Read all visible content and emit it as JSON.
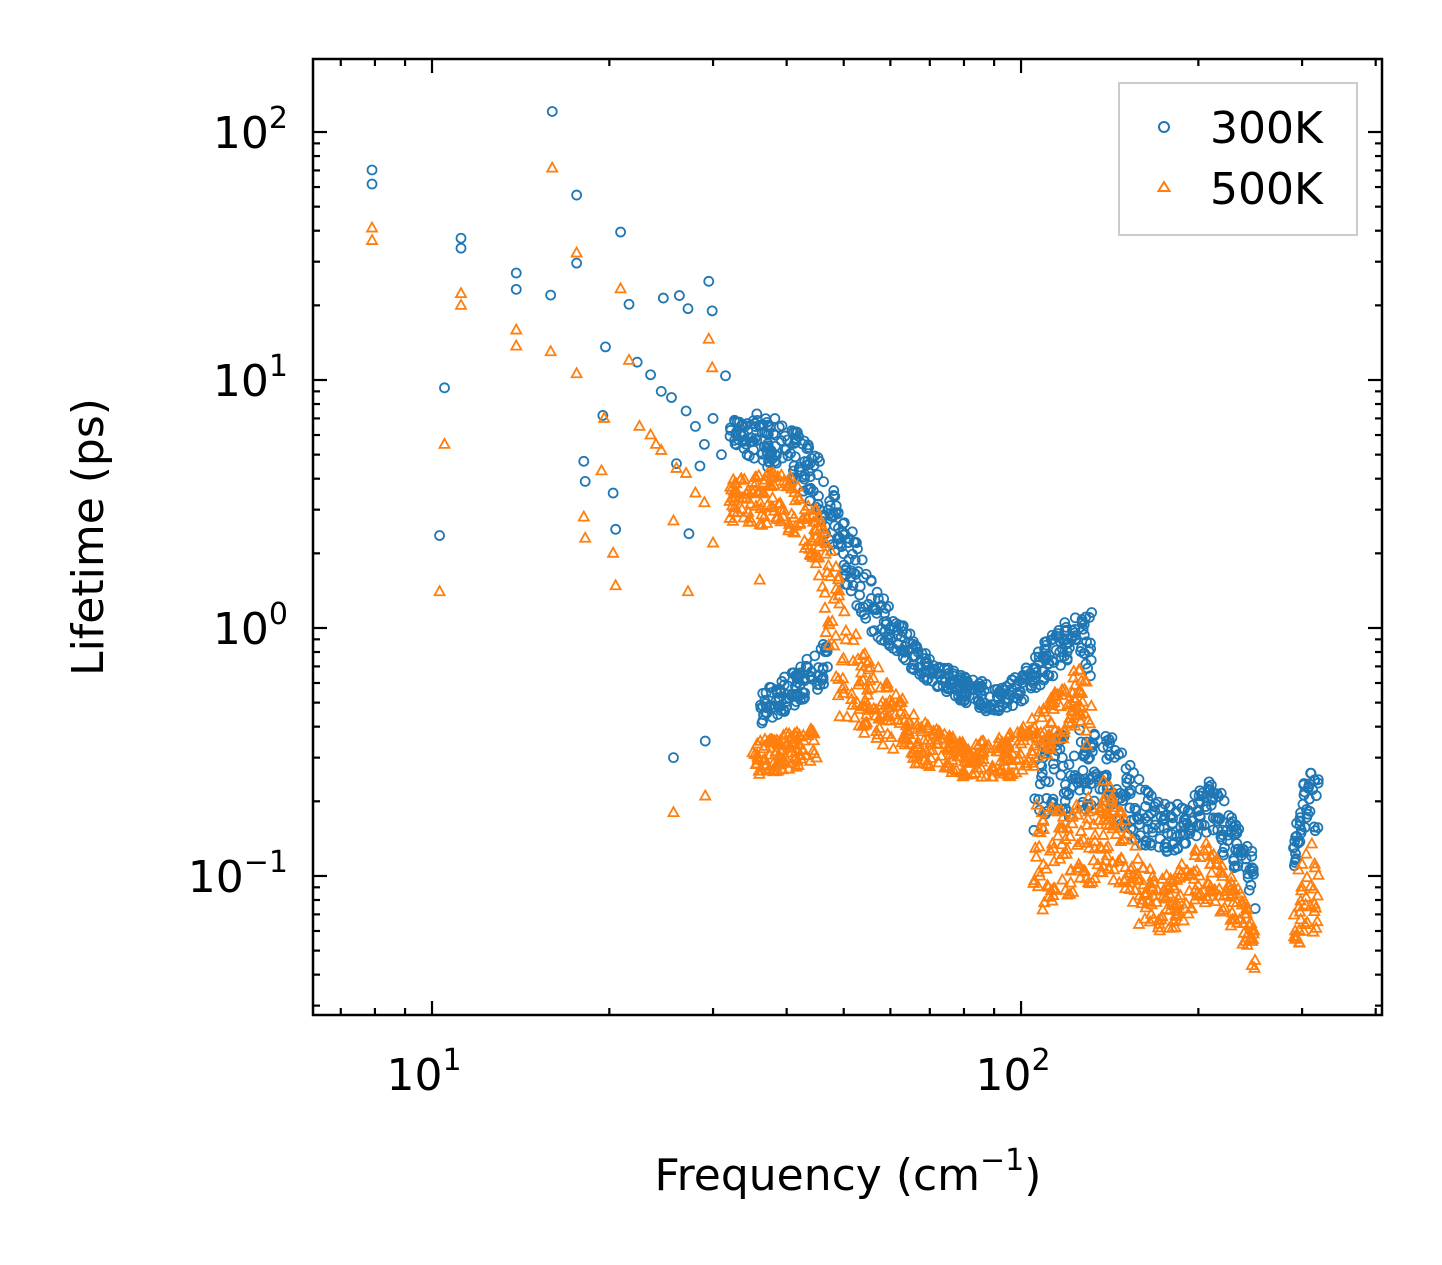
{
  "chart_data": {
    "type": "scatter",
    "title": "",
    "xlabel": "Frequency (cm",
    "xlabel_sup": "−1",
    "xlabel_end": ")",
    "ylabel": "Lifetime (ps)",
    "xscale": "log",
    "yscale": "log",
    "xlim": [
      6.28,
      410
    ],
    "ylim": [
      0.0275,
      197
    ],
    "x_ticks": [
      {
        "base": "10",
        "exp": "1",
        "value": 10
      },
      {
        "base": "10",
        "exp": "2",
        "value": 100
      }
    ],
    "y_ticks": [
      {
        "base": "10",
        "exp": "2",
        "value": 100
      },
      {
        "base": "10",
        "exp": "1",
        "value": 10
      },
      {
        "base": "10",
        "exp": "0",
        "value": 1
      },
      {
        "base": "10",
        "exp": "−1",
        "value": 0.1
      }
    ],
    "legend": {
      "placement": "top-right",
      "entries": [
        "300K",
        "500K"
      ]
    },
    "grid": false,
    "series": [
      {
        "name": "300K",
        "color": "#1f77b4",
        "marker": "circle",
        "points": [
          [
            7.91,
            70.3
          ],
          [
            7.91,
            61.7
          ],
          [
            10.3,
            2.36
          ],
          [
            10.5,
            9.3
          ],
          [
            11.2,
            37.3
          ],
          [
            11.2,
            34
          ],
          [
            13.9,
            23.2
          ],
          [
            13.9,
            27
          ],
          [
            15.9,
            22
          ],
          [
            16.0,
            121
          ],
          [
            17.6,
            55.7
          ],
          [
            17.6,
            29.6
          ],
          [
            18.1,
            4.7
          ],
          [
            18.2,
            3.9
          ],
          [
            19.7,
            13.6
          ],
          [
            19.5,
            7.2
          ],
          [
            20.3,
            3.5
          ],
          [
            20.5,
            2.5
          ],
          [
            20.9,
            39.5
          ],
          [
            21.6,
            20.2
          ],
          [
            22.3,
            11.8
          ],
          [
            24.7,
            21.4
          ],
          [
            25.7,
            0.3
          ],
          [
            26.3,
            21.9
          ],
          [
            27.2,
            19.4
          ],
          [
            29.1,
            0.35
          ],
          [
            29.5,
            25
          ],
          [
            29.9,
            19
          ],
          [
            27.3,
            2.4
          ],
          [
            31.5,
            10.4
          ],
          [
            35.6,
            7.3
          ],
          [
            23.5,
            10.5
          ],
          [
            24.5,
            9
          ],
          [
            25.5,
            8.5
          ],
          [
            27,
            7.5
          ],
          [
            28,
            6.5
          ],
          [
            29,
            5.5
          ],
          [
            30,
            7
          ],
          [
            31,
            5
          ],
          [
            26,
            4.6
          ],
          [
            28.5,
            4.5
          ]
        ],
        "bands": [
          [
            [
              32,
              5.5,
              7
            ],
            [
              40,
              4,
              7
            ],
            [
              45,
              3,
              5
            ],
            [
              50,
              1.5,
              3
            ],
            [
              55,
              1,
              1.8
            ],
            [
              60,
              0.8,
              1.2
            ],
            [
              70,
              0.6,
              0.75
            ],
            [
              80,
              0.5,
              0.65
            ],
            [
              90,
              0.45,
              0.6
            ],
            [
              100,
              0.5,
              0.65
            ],
            [
              110,
              0.6,
              0.9
            ],
            [
              125,
              0.8,
              1.2
            ],
            [
              132,
              0.6,
              1.2
            ]
          ],
          [
            [
              36,
              0.4,
              0.55
            ],
            [
              42,
              0.5,
              0.7
            ],
            [
              47,
              0.6,
              0.9
            ]
          ],
          [
            [
              105,
              0.15,
              0.4
            ],
            [
              140,
              0.2,
              0.4
            ],
            [
              150,
              0.15,
              0.3
            ],
            [
              170,
              0.12,
              0.2
            ],
            [
              190,
              0.13,
              0.2
            ],
            [
              210,
              0.15,
              0.25
            ],
            [
              230,
              0.1,
              0.18
            ],
            [
              250,
              0.07,
              0.12
            ]
          ],
          [
            [
              290,
              0.1,
              0.15
            ],
            [
              300,
              0.15,
              0.25
            ],
            [
              320,
              0.15,
              0.27
            ]
          ]
        ]
      },
      {
        "name": "500K",
        "color": "#ff7f0e",
        "marker": "triangle",
        "points": [
          [
            7.91,
            41
          ],
          [
            7.91,
            36.5
          ],
          [
            10.5,
            5.5
          ],
          [
            10.3,
            1.4
          ],
          [
            11.2,
            22.3
          ],
          [
            11.2,
            20
          ],
          [
            13.9,
            15.9
          ],
          [
            13.9,
            13.7
          ],
          [
            16,
            71.5
          ],
          [
            15.9,
            13
          ],
          [
            17.6,
            32.5
          ],
          [
            17.6,
            10.6
          ],
          [
            18.1,
            2.8
          ],
          [
            18.2,
            2.3
          ],
          [
            19.6,
            7.0
          ],
          [
            19.4,
            4.3
          ],
          [
            20.3,
            2.0
          ],
          [
            20.5,
            1.48
          ],
          [
            20.9,
            23.3
          ],
          [
            21.6,
            12
          ],
          [
            25.7,
            0.18
          ],
          [
            27.2,
            1.4
          ],
          [
            29.1,
            0.21
          ],
          [
            29.5,
            14.6
          ],
          [
            29.9,
            11.2
          ],
          [
            25.7,
            2.7
          ],
          [
            36,
            1.56
          ],
          [
            22.5,
            6.5
          ],
          [
            23.5,
            6
          ],
          [
            24.5,
            5.2
          ],
          [
            26,
            4.4
          ],
          [
            27,
            4.2
          ],
          [
            28,
            3.5
          ],
          [
            29,
            3.2
          ],
          [
            30,
            2.2
          ],
          [
            24,
            5.5
          ]
        ],
        "bands": [
          [
            [
              32,
              2.7,
              4
            ],
            [
              40,
              2.5,
              4.3
            ],
            [
              45,
              1.8,
              3
            ],
            [
              48,
              0.5,
              2
            ],
            [
              50,
              0.4,
              1.4
            ],
            [
              55,
              0.35,
              0.8
            ],
            [
              60,
              0.3,
              0.6
            ],
            [
              70,
              0.27,
              0.4
            ],
            [
              80,
              0.25,
              0.35
            ],
            [
              90,
              0.25,
              0.35
            ],
            [
              100,
              0.25,
              0.4
            ],
            [
              110,
              0.3,
              0.5
            ],
            [
              125,
              0.4,
              0.7
            ],
            [
              132,
              0.3,
              0.7
            ]
          ],
          [
            [
              35,
              0.25,
              0.35
            ],
            [
              45,
              0.28,
              0.4
            ]
          ],
          [
            [
              105,
              0.07,
              0.2
            ],
            [
              120,
              0.08,
              0.18
            ],
            [
              140,
              0.1,
              0.25
            ],
            [
              160,
              0.06,
              0.12
            ],
            [
              180,
              0.06,
              0.1
            ],
            [
              210,
              0.08,
              0.15
            ],
            [
              240,
              0.05,
              0.08
            ],
            [
              250,
              0.04,
              0.06
            ]
          ],
          [
            [
              290,
              0.05,
              0.1
            ],
            [
              320,
              0.06,
              0.15
            ]
          ]
        ]
      }
    ]
  }
}
